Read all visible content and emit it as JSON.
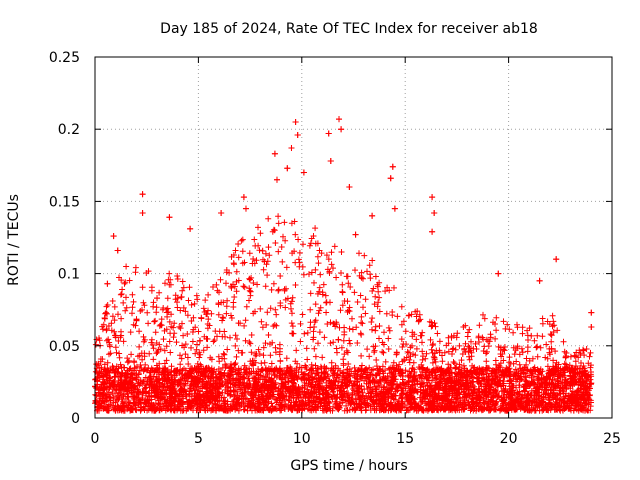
{
  "chart_data": {
    "type": "scatter",
    "title": "Day 185 of 2024, Rate Of TEC Index for receiver ab18",
    "xlabel": "GPS time / hours",
    "ylabel": "ROTI / TECUs",
    "xlim": [
      0,
      25
    ],
    "ylim": [
      0,
      0.25
    ],
    "xticks": [
      0,
      5,
      10,
      15,
      20,
      25
    ],
    "yticks": [
      0,
      0.05,
      0.1,
      0.15,
      0.2,
      0.25
    ],
    "xtick_labels": [
      "0",
      "5",
      "10",
      "15",
      "20",
      "25"
    ],
    "ytick_labels": [
      "0",
      "0.05",
      "0.1",
      "0.15",
      "0.2",
      "0.25"
    ],
    "grid": true,
    "marker": "plus",
    "marker_color": "#ff0000",
    "series": [
      {
        "name": "ROTI",
        "notable_points": [
          {
            "x": 2.3,
            "y": 0.155
          },
          {
            "x": 2.3,
            "y": 0.142
          },
          {
            "x": 3.6,
            "y": 0.139
          },
          {
            "x": 4.6,
            "y": 0.131
          },
          {
            "x": 6.1,
            "y": 0.142
          },
          {
            "x": 7.2,
            "y": 0.153
          },
          {
            "x": 7.3,
            "y": 0.145
          },
          {
            "x": 8.7,
            "y": 0.183
          },
          {
            "x": 8.8,
            "y": 0.165
          },
          {
            "x": 9.3,
            "y": 0.173
          },
          {
            "x": 9.5,
            "y": 0.187
          },
          {
            "x": 9.7,
            "y": 0.205
          },
          {
            "x": 9.8,
            "y": 0.196
          },
          {
            "x": 10.1,
            "y": 0.17
          },
          {
            "x": 11.3,
            "y": 0.197
          },
          {
            "x": 11.4,
            "y": 0.178
          },
          {
            "x": 11.8,
            "y": 0.207
          },
          {
            "x": 11.9,
            "y": 0.2
          },
          {
            "x": 12.3,
            "y": 0.16
          },
          {
            "x": 12.6,
            "y": 0.127
          },
          {
            "x": 13.4,
            "y": 0.14
          },
          {
            "x": 14.3,
            "y": 0.166
          },
          {
            "x": 14.4,
            "y": 0.174
          },
          {
            "x": 14.5,
            "y": 0.145
          },
          {
            "x": 16.3,
            "y": 0.153
          },
          {
            "x": 16.4,
            "y": 0.142
          },
          {
            "x": 16.3,
            "y": 0.129
          },
          {
            "x": 19.5,
            "y": 0.1
          },
          {
            "x": 21.5,
            "y": 0.095
          },
          {
            "x": 22.3,
            "y": 0.11
          },
          {
            "x": 24.0,
            "y": 0.073
          },
          {
            "x": 24.0,
            "y": 0.063
          },
          {
            "x": 0.6,
            "y": 0.093
          },
          {
            "x": 0.9,
            "y": 0.126
          },
          {
            "x": 1.1,
            "y": 0.116
          },
          {
            "x": 3.0,
            "y": 0.083
          }
        ],
        "envelope": [
          {
            "x": 0,
            "y": 0.05
          },
          {
            "x": 1,
            "y": 0.09
          },
          {
            "x": 2,
            "y": 0.11
          },
          {
            "x": 3,
            "y": 0.09
          },
          {
            "x": 4,
            "y": 0.1
          },
          {
            "x": 5,
            "y": 0.08
          },
          {
            "x": 6,
            "y": 0.09
          },
          {
            "x": 7,
            "y": 0.12
          },
          {
            "x": 8,
            "y": 0.13
          },
          {
            "x": 9,
            "y": 0.14
          },
          {
            "x": 10,
            "y": 0.14
          },
          {
            "x": 11,
            "y": 0.12
          },
          {
            "x": 12,
            "y": 0.11
          },
          {
            "x": 13,
            "y": 0.11
          },
          {
            "x": 14,
            "y": 0.1
          },
          {
            "x": 15,
            "y": 0.07
          },
          {
            "x": 16,
            "y": 0.07
          },
          {
            "x": 17,
            "y": 0.05
          },
          {
            "x": 18,
            "y": 0.06
          },
          {
            "x": 19,
            "y": 0.07
          },
          {
            "x": 20,
            "y": 0.06
          },
          {
            "x": 21,
            "y": 0.06
          },
          {
            "x": 22,
            "y": 0.07
          },
          {
            "x": 23,
            "y": 0.04
          },
          {
            "x": 24,
            "y": 0.045
          }
        ],
        "baseline_range": [
          0.005,
          0.035
        ],
        "x_range": [
          0,
          24
        ]
      }
    ]
  }
}
